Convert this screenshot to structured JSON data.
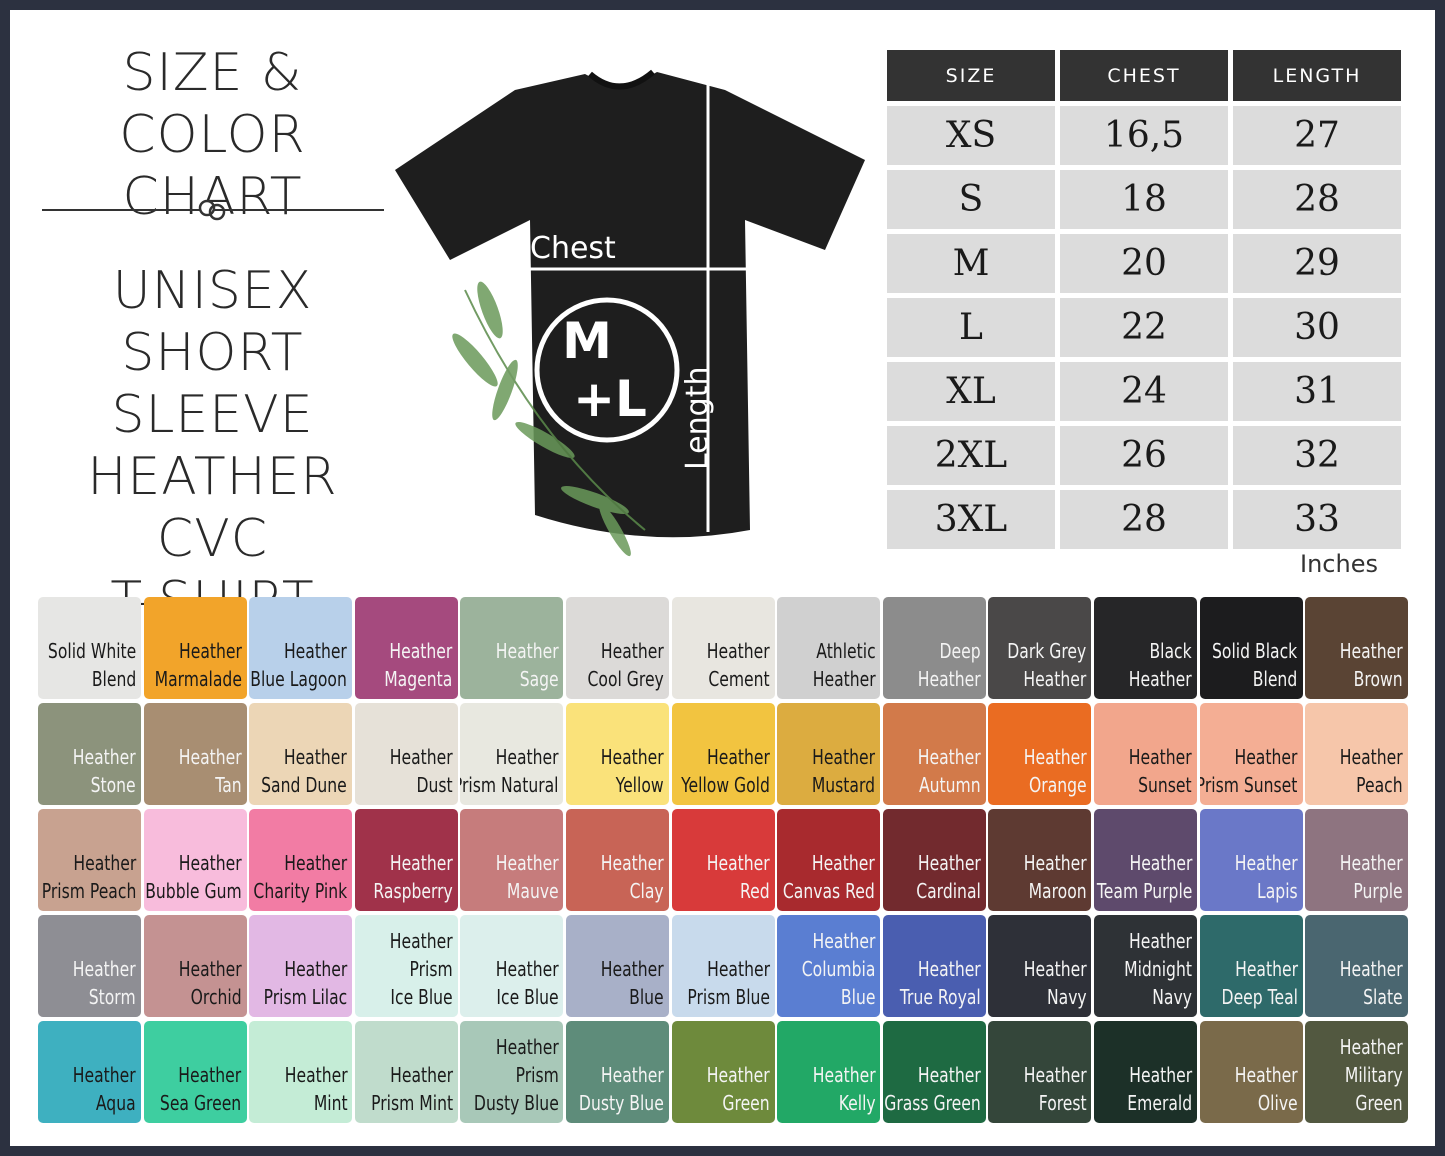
{
  "header": {
    "title_lines": [
      "SIZE & COLOR",
      "CHART"
    ],
    "subtitle_lines": [
      "UNISEX",
      "SHORT SLEEVE",
      "HEATHER CVC",
      "T-SHIRT"
    ]
  },
  "shirt": {
    "chest_label": "Chest",
    "length_label": "Length",
    "logo_top": "M",
    "logo_bottom": "+L",
    "shirt_color": "#1e1e1e"
  },
  "size_table": {
    "headers": [
      "SIZE",
      "CHEST",
      "LENGTH"
    ],
    "rows": [
      [
        "XS",
        "16,5",
        "27"
      ],
      [
        "S",
        "18",
        "28"
      ],
      [
        "M",
        "20",
        "29"
      ],
      [
        "L",
        "22",
        "30"
      ],
      [
        "XL",
        "24",
        "31"
      ],
      [
        "2XL",
        "26",
        "32"
      ],
      [
        "3XL",
        "28",
        "33"
      ]
    ],
    "units": "Inches"
  },
  "swatches": [
    {
      "lines": [
        "Solid White",
        "Blend"
      ],
      "color": "#e6e6e4",
      "text": "dark"
    },
    {
      "lines": [
        "Heather",
        "Marmalade"
      ],
      "color": "#f2a42a",
      "text": "dark"
    },
    {
      "lines": [
        "Heather",
        "Blue Lagoon"
      ],
      "color": "#b8d0ea",
      "text": "dark"
    },
    {
      "lines": [
        "Heather",
        "Magenta"
      ],
      "color": "#a54a7e",
      "text": "light"
    },
    {
      "lines": [
        "Heather",
        "Sage"
      ],
      "color": "#9cb39c",
      "text": "light"
    },
    {
      "lines": [
        "Heather",
        "Cool Grey"
      ],
      "color": "#dcdad8",
      "text": "dark"
    },
    {
      "lines": [
        "Heather",
        "Cement"
      ],
      "color": "#e8e6e0",
      "text": "dark"
    },
    {
      "lines": [
        "Athletic",
        "Heather"
      ],
      "color": "#d0d0d0",
      "text": "dark"
    },
    {
      "lines": [
        "Deep",
        "Heather"
      ],
      "color": "#8c8c8c",
      "text": "light"
    },
    {
      "lines": [
        "Dark Grey",
        "Heather"
      ],
      "color": "#4a4848",
      "text": "light"
    },
    {
      "lines": [
        "Black",
        "Heather"
      ],
      "color": "#262628",
      "text": "light"
    },
    {
      "lines": [
        "Solid Black",
        "Blend"
      ],
      "color": "#1c1c1e",
      "text": "light"
    },
    {
      "lines": [
        "Heather",
        "Brown"
      ],
      "color": "#5a4434",
      "text": "light"
    },
    {
      "lines": [
        "Heather",
        "Stone"
      ],
      "color": "#8c937c",
      "text": "light"
    },
    {
      "lines": [
        "Heather",
        "Tan"
      ],
      "color": "#a88e72",
      "text": "light"
    },
    {
      "lines": [
        "Heather",
        "Sand Dune"
      ],
      "color": "#ecd6b6",
      "text": "dark"
    },
    {
      "lines": [
        "Heather",
        "Dust"
      ],
      "color": "#e6e1d8",
      "text": "dark"
    },
    {
      "lines": [
        "Heather",
        "Prism Natural"
      ],
      "color": "#e8e8e0",
      "text": "dark"
    },
    {
      "lines": [
        "Heather",
        "Yellow"
      ],
      "color": "#fae27a",
      "text": "dark"
    },
    {
      "lines": [
        "Heather",
        "Yellow Gold"
      ],
      "color": "#f2c440",
      "text": "dark"
    },
    {
      "lines": [
        "Heather",
        "Mustard"
      ],
      "color": "#dcac40",
      "text": "dark"
    },
    {
      "lines": [
        "Heather",
        "Autumn"
      ],
      "color": "#d27a4a",
      "text": "light"
    },
    {
      "lines": [
        "Heather",
        "Orange"
      ],
      "color": "#ea6c22",
      "text": "light"
    },
    {
      "lines": [
        "Heather",
        "Sunset"
      ],
      "color": "#f2a68c",
      "text": "dark"
    },
    {
      "lines": [
        "Heather",
        "Prism Sunset"
      ],
      "color": "#f4ae94",
      "text": "dark"
    },
    {
      "lines": [
        "Heather",
        "Peach"
      ],
      "color": "#f6c6aa",
      "text": "dark"
    },
    {
      "lines": [
        "Heather",
        "Prism Peach"
      ],
      "color": "#c8a290",
      "text": "dark"
    },
    {
      "lines": [
        "Heather",
        "Bubble Gum"
      ],
      "color": "#f8bcdc",
      "text": "dark"
    },
    {
      "lines": [
        "Heather",
        "Charity Pink"
      ],
      "color": "#f27ca4",
      "text": "dark"
    },
    {
      "lines": [
        "Heather",
        "Raspberry"
      ],
      "color": "#a0324a",
      "text": "light"
    },
    {
      "lines": [
        "Heather",
        "Mauve"
      ],
      "color": "#c67c7c",
      "text": "light"
    },
    {
      "lines": [
        "Heather",
        "Clay"
      ],
      "color": "#c86456",
      "text": "light"
    },
    {
      "lines": [
        "Heather",
        "Red"
      ],
      "color": "#d83a3a",
      "text": "light"
    },
    {
      "lines": [
        "Heather",
        "Canvas Red"
      ],
      "color": "#a82a2e",
      "text": "light"
    },
    {
      "lines": [
        "Heather",
        "Cardinal"
      ],
      "color": "#722a2e",
      "text": "light"
    },
    {
      "lines": [
        "Heather",
        "Maroon"
      ],
      "color": "#5e3a32",
      "text": "light"
    },
    {
      "lines": [
        "Heather",
        "Team Purple"
      ],
      "color": "#5e4a6c",
      "text": "light"
    },
    {
      "lines": [
        "Heather",
        "Lapis"
      ],
      "color": "#6a78c8",
      "text": "light"
    },
    {
      "lines": [
        "Heather",
        "Purple"
      ],
      "color": "#8e7480",
      "text": "light"
    },
    {
      "lines": [
        "Heather",
        "Storm"
      ],
      "color": "#8e8e94",
      "text": "light"
    },
    {
      "lines": [
        "Heather",
        "Orchid"
      ],
      "color": "#c49292",
      "text": "dark"
    },
    {
      "lines": [
        "Heather",
        "Prism Lilac"
      ],
      "color": "#e2b8e4",
      "text": "dark"
    },
    {
      "lines": [
        "Heather",
        "Prism",
        "Ice Blue"
      ],
      "color": "#d8f0ea",
      "text": "dark"
    },
    {
      "lines": [
        "Heather",
        "Ice Blue"
      ],
      "color": "#dcefec",
      "text": "dark"
    },
    {
      "lines": [
        "Heather",
        "Blue"
      ],
      "color": "#a8b0c8",
      "text": "dark"
    },
    {
      "lines": [
        "Heather",
        "Prism Blue"
      ],
      "color": "#c8daec",
      "text": "dark"
    },
    {
      "lines": [
        "Heather",
        "Columbia",
        "Blue"
      ],
      "color": "#5a7ed2",
      "text": "light"
    },
    {
      "lines": [
        "Heather",
        "True Royal"
      ],
      "color": "#4a5eb0",
      "text": "light"
    },
    {
      "lines": [
        "Heather",
        "Navy"
      ],
      "color": "#2e3038",
      "text": "light"
    },
    {
      "lines": [
        "Heather",
        "Midnight",
        "Navy"
      ],
      "color": "#2e3236",
      "text": "light"
    },
    {
      "lines": [
        "Heather",
        "Deep Teal"
      ],
      "color": "#2e6a6a",
      "text": "light"
    },
    {
      "lines": [
        "Heather",
        "Slate"
      ],
      "color": "#4a6670",
      "text": "light"
    },
    {
      "lines": [
        "Heather",
        "Aqua"
      ],
      "color": "#3eb0c0",
      "text": "dark"
    },
    {
      "lines": [
        "Heather",
        "Sea Green"
      ],
      "color": "#3ecea0",
      "text": "dark"
    },
    {
      "lines": [
        "Heather",
        "Mint"
      ],
      "color": "#c4ecd6",
      "text": "dark"
    },
    {
      "lines": [
        "Heather",
        "Prism Mint"
      ],
      "color": "#c0dccc",
      "text": "dark"
    },
    {
      "lines": [
        "Heather",
        "Prism",
        "Dusty Blue"
      ],
      "color": "#a8c8b8",
      "text": "dark"
    },
    {
      "lines": [
        "Heather",
        "Dusty Blue"
      ],
      "color": "#5e8c7a",
      "text": "light"
    },
    {
      "lines": [
        "Heather",
        "Green"
      ],
      "color": "#6e8a3c",
      "text": "light"
    },
    {
      "lines": [
        "Heather",
        "Kelly"
      ],
      "color": "#22a866",
      "text": "light"
    },
    {
      "lines": [
        "Heather",
        "Grass Green"
      ],
      "color": "#1e6a42",
      "text": "light"
    },
    {
      "lines": [
        "Heather",
        "Forest"
      ],
      "color": "#34463a",
      "text": "light"
    },
    {
      "lines": [
        "Heather",
        "Emerald"
      ],
      "color": "#1c3028",
      "text": "light"
    },
    {
      "lines": [
        "Heather",
        "Olive"
      ],
      "color": "#7a6a4a",
      "text": "light"
    },
    {
      "lines": [
        "Heather",
        "Military",
        "Green"
      ],
      "color": "#525840",
      "text": "light"
    }
  ]
}
